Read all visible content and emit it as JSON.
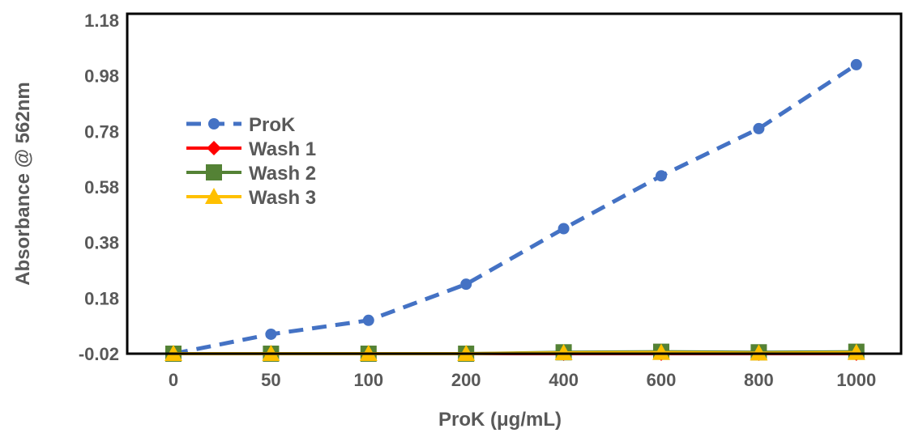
{
  "chart_data": {
    "type": "line",
    "categories": [
      "0",
      "50",
      "100",
      "200",
      "400",
      "600",
      "800",
      "1000"
    ],
    "xlabel": "ProK (μg/mL)",
    "ylabel": "Absorbance @ 562nm",
    "ylim": [
      -0.02,
      1.18
    ],
    "yticks": [
      "-0.02",
      "0.18",
      "0.38",
      "0.58",
      "0.78",
      "0.98",
      "1.18"
    ],
    "grid": false,
    "legend_position": "left",
    "series": [
      {
        "name": "ProK",
        "color": "#4472C4",
        "marker": "circle",
        "dashed": true,
        "values": [
          -0.02,
          0.05,
          0.1,
          0.23,
          0.43,
          0.62,
          0.79,
          1.02
        ]
      },
      {
        "name": "Wash 1",
        "color": "#FF0000",
        "marker": "diamond",
        "dashed": false,
        "values": [
          -0.02,
          -0.02,
          -0.02,
          -0.02,
          -0.02,
          -0.02,
          -0.02,
          -0.02
        ]
      },
      {
        "name": "Wash 2",
        "color": "#548235",
        "marker": "square",
        "dashed": false,
        "values": [
          -0.02,
          -0.02,
          -0.02,
          -0.02,
          -0.015,
          -0.013,
          -0.015,
          -0.013
        ]
      },
      {
        "name": "Wash 3",
        "color": "#FFC000",
        "marker": "triangle",
        "dashed": false,
        "values": [
          -0.02,
          -0.02,
          -0.02,
          -0.02,
          -0.017,
          -0.016,
          -0.018,
          -0.016
        ]
      }
    ]
  }
}
